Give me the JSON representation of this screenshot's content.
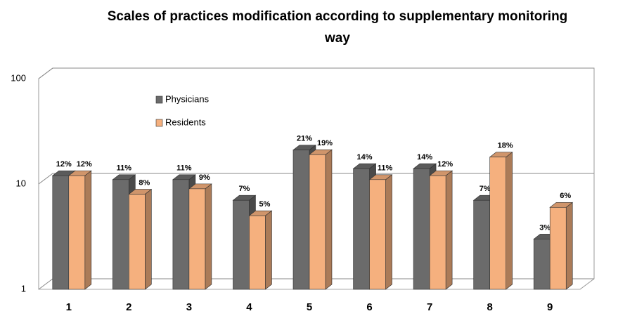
{
  "chart_data": {
    "type": "bar3d",
    "title": "Scales of practices modification according to supplementary monitoring way",
    "categories": [
      "1",
      "2",
      "3",
      "4",
      "5",
      "6",
      "7",
      "8",
      "9"
    ],
    "series": [
      {
        "name": "Physicians",
        "color": "#6b6b6b",
        "values": [
          12,
          11,
          11,
          7,
          21,
          14,
          14,
          7,
          3
        ],
        "value_labels": [
          "12%",
          "11%",
          "11%",
          "7%",
          "21%",
          "14%",
          "14%",
          "7%",
          "3%"
        ]
      },
      {
        "name": "Residents",
        "color": "#f5b07e",
        "values": [
          12,
          8,
          9,
          5,
          19,
          11,
          12,
          18,
          6
        ],
        "value_labels": [
          "12%",
          "8%",
          "9%",
          "5%",
          "19%",
          "11%",
          "12%",
          "18%",
          "6%"
        ]
      }
    ],
    "ylim": [
      1,
      100
    ],
    "yticks": [
      1,
      10,
      100
    ],
    "yscale": "log",
    "grid": true
  }
}
